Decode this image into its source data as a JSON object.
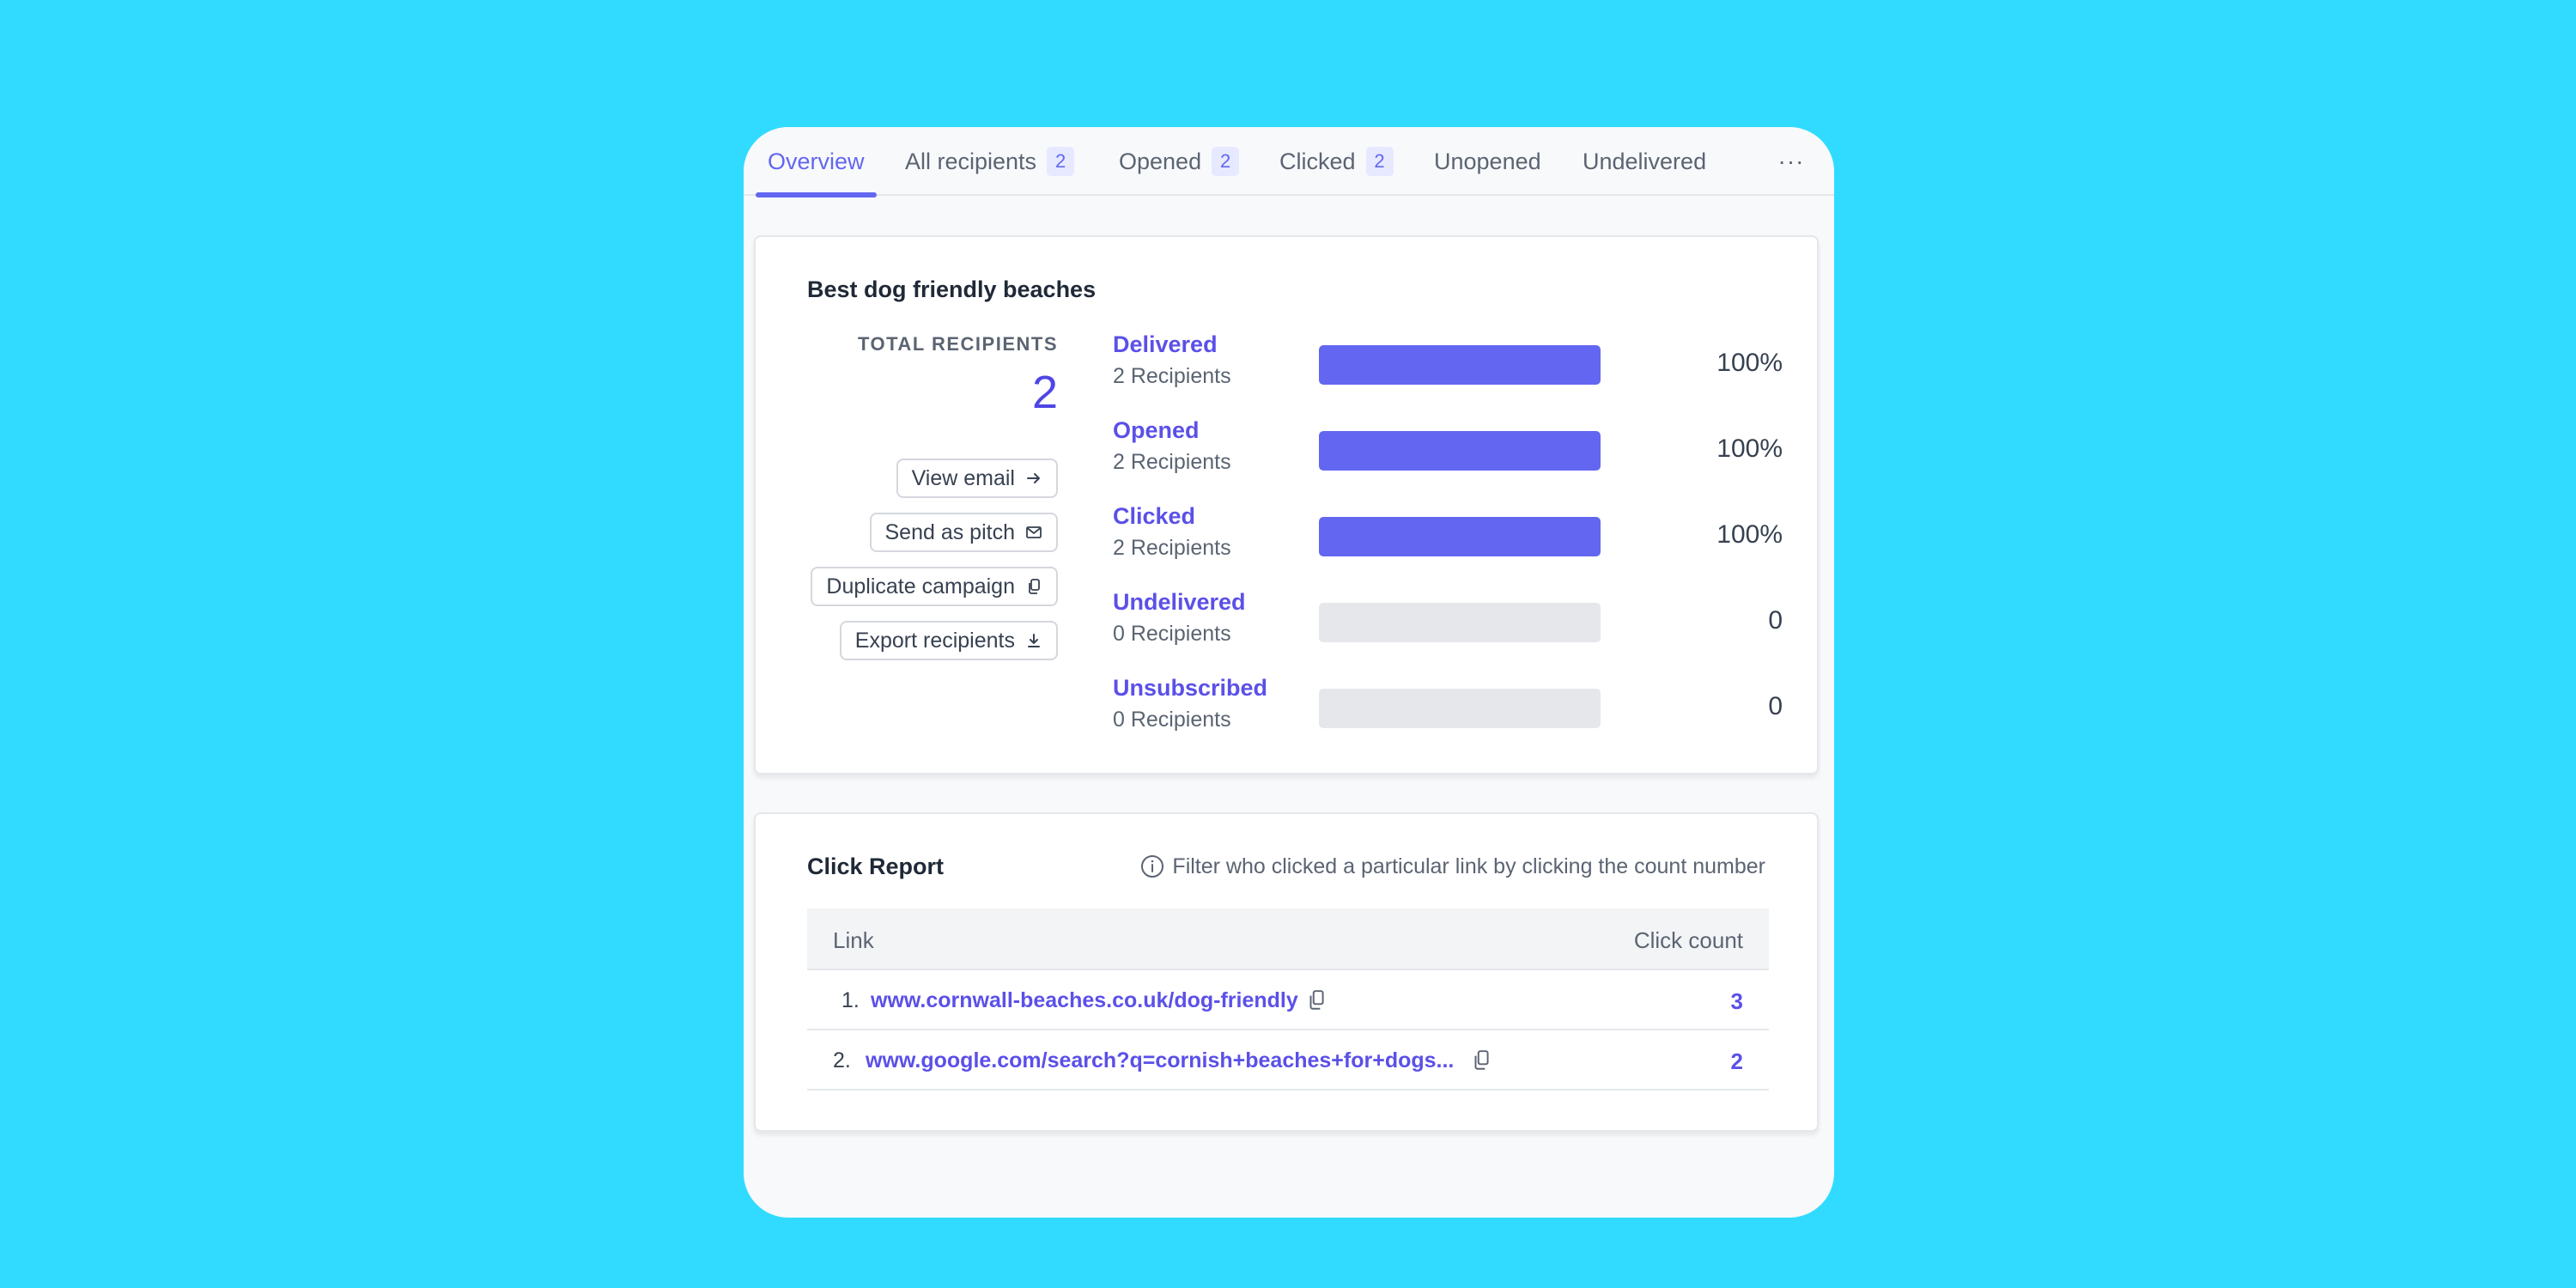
{
  "tabs": [
    {
      "label": "Overview",
      "badge": ""
    },
    {
      "label": "All recipients",
      "badge": "2"
    },
    {
      "label": "Opened",
      "badge": "2"
    },
    {
      "label": "Clicked",
      "badge": "2"
    },
    {
      "label": "Unopened",
      "badge": ""
    },
    {
      "label": "Undelivered",
      "badge": ""
    }
  ],
  "more_label": "···",
  "campaign": {
    "title": "Best dog friendly beaches",
    "total_label": "TOTAL RECIPIENTS",
    "total_value": "2",
    "actions": {
      "view_email": "View email",
      "send_as_pitch": "Send as pitch",
      "duplicate_campaign": "Duplicate campaign",
      "export_recipients": "Export recipients"
    },
    "stats": [
      {
        "name": "Delivered",
        "sub": "2 Recipients",
        "value": "100%",
        "fill": 1.0
      },
      {
        "name": "Opened",
        "sub": "2 Recipients",
        "value": "100%",
        "fill": 1.0
      },
      {
        "name": "Clicked",
        "sub": "2 Recipients",
        "value": "100%",
        "fill": 1.0
      },
      {
        "name": "Undelivered",
        "sub": "0 Recipients",
        "value": "0",
        "fill": 0
      },
      {
        "name": "Unsubscribed",
        "sub": "0 Recipients",
        "value": "0",
        "fill": 0
      }
    ]
  },
  "click_report": {
    "title": "Click Report",
    "info": "Filter who clicked a particular link by clicking the count number",
    "col_link": "Link",
    "col_count": "Click count",
    "rows": [
      {
        "num": "1.",
        "link": "www.cornwall-beaches.co.uk/dog-friendly",
        "count": "3"
      },
      {
        "num": "2.",
        "link": "www.google.com/search?q=cornish+beaches+for+dogs...",
        "count": "2"
      }
    ]
  },
  "colors": {
    "background": "#31dbff",
    "accent": "#6366f1",
    "link": "#5b50e8"
  }
}
